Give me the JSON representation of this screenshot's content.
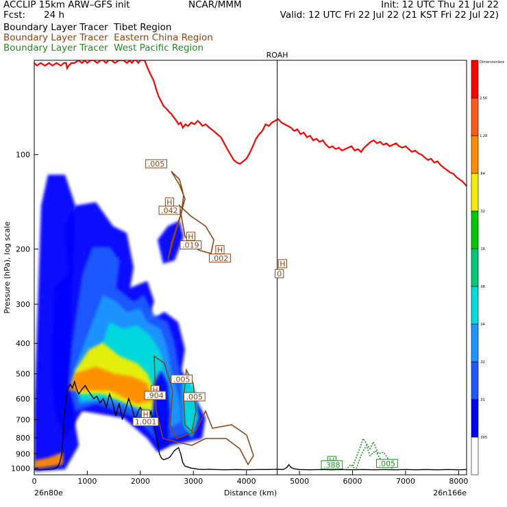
{
  "header": {
    "model": "ACCLIP 15km ARW–GFS init",
    "org": "NCAR/MMM",
    "init": "Init: 12 UTC Thu 21 Jul 22",
    "fcst_label": "Fcst:",
    "fcst_value": "24 h",
    "valid": "Valid: 12 UTC Fri 22 Jul 22 (21 KST Fri 22 Jul 22)"
  },
  "legend": [
    {
      "text": "Boundary Layer Tracer  Tibet Region",
      "color": "#000000"
    },
    {
      "text": "Boundary Layer Tracer  Eastern China Region",
      "color": "#8b4513"
    },
    {
      "text": "Boundary Layer Tracer  West Pacific Region",
      "color": "#228b22"
    }
  ],
  "chart_data": {
    "type": "cross-section",
    "xlabel": "Distance (km)",
    "ylabel": "Pressure (hPa), log scale",
    "y_scale": "log",
    "xlim": [
      0,
      8150
    ],
    "ylim": [
      1050,
      50
    ],
    "x_ticks": [
      0,
      1000,
      2000,
      3000,
      4000,
      5000,
      6000,
      7000,
      8000
    ],
    "y_ticks": [
      100,
      200,
      300,
      400,
      500,
      600,
      700,
      800,
      900,
      1000
    ],
    "x_start_label": "26n80e",
    "x_end_label": "26n166e",
    "vertical_marker": {
      "label": "ROAH",
      "x": 4580
    },
    "colorbar": {
      "title": "Dimensionless",
      "levels": [
        ".005",
        ".01",
        ".02",
        ".04",
        ".08",
        ".16",
        ".32",
        ".64",
        "1.28",
        "2.56"
      ],
      "colors": [
        "#ffffff",
        "#0000ff",
        "#1e5aff",
        "#1e96ff",
        "#00dcdc",
        "#00c878",
        "#00c800",
        "#f0f000",
        "#ff8c00",
        "#ff5a1e",
        "#ff0000"
      ]
    },
    "tropopause": {
      "color": "#ff0000",
      "x": [
        0,
        50,
        120,
        200,
        280,
        340,
        420,
        500,
        560,
        600,
        620,
        650,
        700,
        760,
        830,
        900,
        950,
        1000,
        1060,
        1120,
        1190,
        1250,
        1300,
        1350,
        1400,
        1460,
        1520,
        1600,
        1680,
        1750,
        1800,
        1840,
        1880,
        1920,
        1960,
        2000,
        2020,
        2080,
        2120,
        2180,
        2250,
        2300,
        2340,
        2400,
        2440,
        2480,
        2540,
        2580,
        2630,
        2680,
        2720,
        2760,
        2800,
        2850,
        2900,
        2960,
        3020,
        3080,
        3120,
        3170,
        3230,
        3300,
        3380,
        3450,
        3520,
        3580,
        3640,
        3700,
        3760,
        3820,
        3880,
        3940,
        4000,
        4060,
        4120,
        4180,
        4240,
        4300,
        4360,
        4420,
        4480,
        4540,
        4600,
        4660,
        4720,
        4780,
        4840,
        4900,
        4960,
        5020,
        5080,
        5140,
        5200,
        5260,
        5320,
        5380,
        5440,
        5500,
        5560,
        5620,
        5680,
        5740,
        5800,
        5860,
        5920,
        5980,
        6040,
        6100,
        6160,
        6220,
        6280,
        6340,
        6400,
        6460,
        6520,
        6580,
        6640,
        6700,
        6760,
        6820,
        6880,
        6940,
        7000,
        7060,
        7120,
        7180,
        7240,
        7300,
        7360,
        7420,
        7480,
        7540,
        7600,
        7660,
        7720,
        7780,
        7840,
        7900,
        7960,
        8020,
        8080,
        8150
      ],
      "p": [
        51,
        52,
        51,
        52,
        51,
        52,
        51,
        52,
        51,
        51,
        53,
        52,
        51,
        51,
        50,
        51,
        50,
        51,
        50,
        50,
        51,
        50,
        50,
        51,
        50,
        50,
        51,
        50,
        50,
        51,
        50,
        51,
        50,
        50,
        51,
        50,
        50,
        50,
        52,
        55,
        58,
        62,
        65,
        68,
        70,
        71,
        73,
        74,
        76,
        78,
        80,
        79,
        82,
        80,
        81,
        79,
        80,
        78,
        79,
        81,
        80,
        82,
        84,
        86,
        88,
        92,
        96,
        100,
        104,
        106,
        107,
        105,
        103,
        99,
        94,
        89,
        86,
        84,
        80,
        81,
        79,
        78,
        77,
        79,
        80,
        81,
        82,
        84,
        83,
        86,
        85,
        88,
        87,
        90,
        89,
        91,
        90,
        93,
        95,
        94,
        96,
        95,
        97,
        96,
        95,
        94,
        97,
        96,
        98,
        95,
        93,
        91,
        90,
        92,
        91,
        93,
        92,
        94,
        93,
        92,
        94,
        95,
        94,
        96,
        98,
        97,
        99,
        100,
        102,
        104,
        103,
        106,
        105,
        108,
        110,
        112,
        114,
        115,
        118,
        120,
        122,
        126
      ]
    },
    "terrain": {
      "color": "#000000",
      "x": [
        0,
        100,
        200,
        300,
        380,
        440,
        480,
        520,
        560,
        620,
        680,
        720,
        760,
        800,
        840,
        900,
        960,
        1000,
        1060,
        1120,
        1180,
        1240,
        1300,
        1360,
        1420,
        1480,
        1540,
        1600,
        1660,
        1720,
        1780,
        1840,
        1900,
        1960,
        2000,
        2040,
        2080,
        2120,
        2160,
        2200,
        2240,
        2280,
        2320,
        2360,
        2400,
        2440,
        2480,
        2520,
        2560,
        2600,
        2640,
        2680,
        2720,
        2760,
        2800,
        2840,
        2880,
        2920,
        2960,
        3000,
        3050,
        3100,
        3200,
        3300,
        3400,
        3600,
        3800,
        4000,
        4200,
        4400,
        4600,
        4700,
        4760,
        4800,
        4840,
        4900,
        5000,
        5200,
        5400,
        5600,
        5800,
        6000,
        6200,
        6400,
        6600,
        6800,
        7000,
        7200,
        7400,
        7600,
        7800,
        8000,
        8150
      ],
      "p": [
        1010,
        1012,
        1010,
        1008,
        1005,
        990,
        960,
        900,
        700,
        560,
        540,
        555,
        530,
        560,
        580,
        560,
        545,
        560,
        580,
        600,
        590,
        620,
        600,
        640,
        580,
        620,
        680,
        620,
        700,
        650,
        600,
        640,
        700,
        660,
        640,
        660,
        720,
        680,
        700,
        660,
        700,
        760,
        820,
        900,
        930,
        940,
        935,
        930,
        920,
        900,
        880,
        870,
        860,
        900,
        960,
        985,
        990,
        995,
        1000,
        1002,
        1005,
        1008,
        1010,
        1008,
        1010,
        1012,
        1010,
        1012,
        1010,
        1010,
        1008,
        1010,
        995,
        975,
        995,
        1005,
        1010,
        1012,
        1010,
        1012,
        1010,
        1012,
        1010,
        1012,
        1010,
        1012,
        1010,
        1012,
        1010,
        1012,
        1010,
        1012,
        1010
      ]
    },
    "labels": [
      {
        "text": ".005",
        "x": 2300,
        "p": 108,
        "color": "#8b4513"
      },
      {
        "text": "H",
        "x": 2550,
        "p": 143,
        "color": "#8b4513"
      },
      {
        "text": ".042",
        "x": 2550,
        "p": 152,
        "color": "#8b4513"
      },
      {
        "text": "H",
        "x": 2950,
        "p": 184,
        "color": "#8b4513"
      },
      {
        "text": ".019",
        "x": 2950,
        "p": 196,
        "color": "#8b4513"
      },
      {
        "text": "H",
        "x": 3500,
        "p": 203,
        "color": "#8b4513"
      },
      {
        "text": ".002",
        "x": 3500,
        "p": 216,
        "color": "#8b4513"
      },
      {
        "text": "H",
        "x": 4680,
        "p": 225,
        "color": "#8b4513"
      },
      {
        "text": "0",
        "x": 4620,
        "p": 242,
        "color": "#8b4513"
      },
      {
        "text": ".005",
        "x": 2780,
        "p": 525,
        "color": "#8b4513"
      },
      {
        "text": "H",
        "x": 2280,
        "p": 568,
        "color": "#8b4513"
      },
      {
        "text": ".904",
        "x": 2280,
        "p": 592,
        "color": "#8b4513"
      },
      {
        "text": ".005",
        "x": 3020,
        "p": 598,
        "color": "#8b4513"
      },
      {
        "text": "H",
        "x": 2100,
        "p": 680,
        "color": "#8b4513"
      },
      {
        "text": "1.001",
        "x": 2100,
        "p": 718,
        "color": "#8b4513"
      },
      {
        "text": "H",
        "x": 5610,
        "p": 955,
        "color": "#228b22"
      },
      {
        "text": ".388",
        "x": 5610,
        "p": 985,
        "color": "#228b22"
      },
      {
        "text": ".005",
        "x": 6650,
        "p": 975,
        "color": "#228b22"
      }
    ]
  }
}
